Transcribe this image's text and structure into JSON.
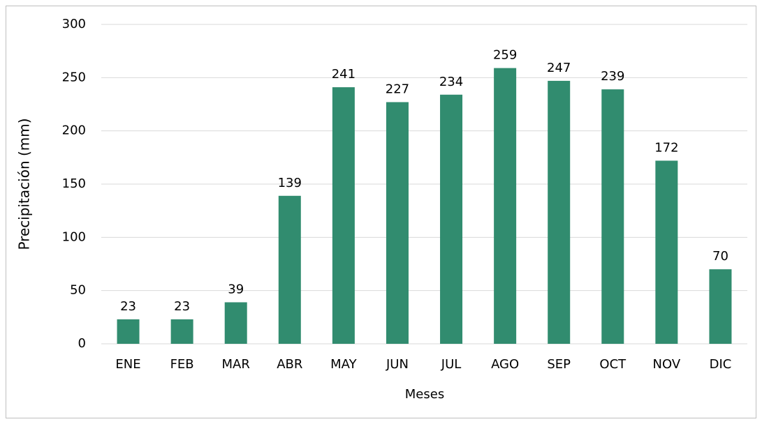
{
  "chart_data": {
    "type": "bar",
    "x_label": "Meses",
    "y_label": "Precipitación (mm)",
    "categories": [
      "ENE",
      "FEB",
      "MAR",
      "ABR",
      "MAY",
      "JUN",
      "JUL",
      "AGO",
      "SEP",
      "OCT",
      "NOV",
      "DIC"
    ],
    "values": [
      23,
      23,
      39,
      139,
      241,
      227,
      234,
      259,
      247,
      239,
      172,
      70
    ],
    "color": "#318c6f",
    "ylim": [
      0,
      300
    ],
    "yticks": [
      0,
      50,
      100,
      150,
      200,
      250,
      300
    ],
    "grid": true,
    "data_labels": true
  }
}
